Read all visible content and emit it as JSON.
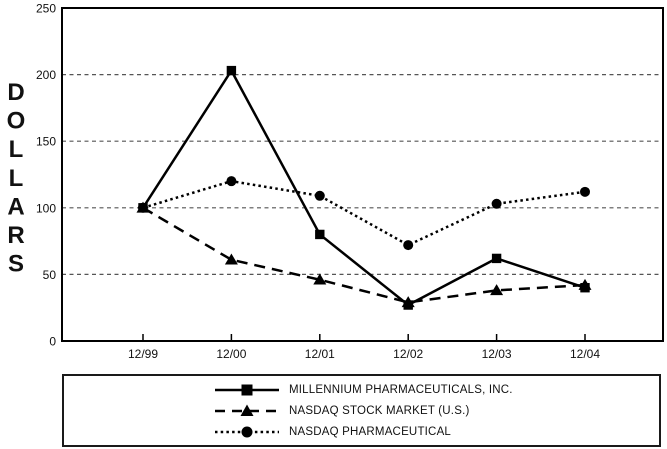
{
  "chart_data": {
    "type": "line",
    "title": "",
    "xlabel": "",
    "ylabel": "DOLLARS",
    "categories": [
      "12/99",
      "12/00",
      "12/01",
      "12/02",
      "12/03",
      "12/04"
    ],
    "y_tick_labels": [
      "0",
      "50",
      "100",
      "150",
      "200",
      "250"
    ],
    "y_ticks": [
      0,
      50,
      100,
      150,
      200,
      250
    ],
    "ylim": [
      0,
      250
    ],
    "grid": "horizontal-dashed",
    "legend_position": "bottom-boxed",
    "series": [
      {
        "name": "MILLENNIUM PHARMACEUTICALS, INC.",
        "marker": "square",
        "line_style": "solid",
        "values": [
          100,
          203,
          80,
          27,
          62,
          40
        ]
      },
      {
        "name": "NASDAQ STOCK MARKET (U.S.)",
        "marker": "triangle",
        "line_style": "dashed",
        "values": [
          100,
          61,
          46,
          29,
          38,
          42
        ]
      },
      {
        "name": "NASDAQ PHARMACEUTICAL",
        "marker": "circle",
        "line_style": "dotted",
        "values": [
          100,
          120,
          109,
          72,
          103,
          112
        ]
      }
    ],
    "colors": {
      "line": "#000000",
      "grid": "#555555",
      "text": "#111111",
      "background": "#ffffff"
    }
  }
}
